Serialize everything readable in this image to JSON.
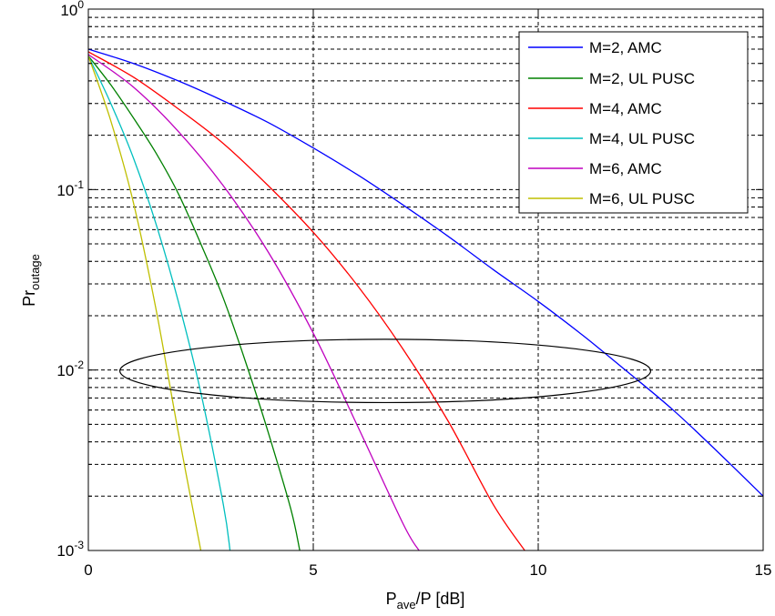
{
  "chart_data": {
    "type": "line",
    "title": "",
    "xlabel": {
      "main": "P",
      "sub": "ave",
      "rest": "/P [dB]"
    },
    "ylabel": {
      "main": "Pr",
      "sub": "outage"
    },
    "xlim": [
      0,
      15
    ],
    "ylim": [
      0.001,
      1
    ],
    "yscale": "log",
    "grid": true,
    "legend_position": "top-right",
    "x_ticks": [
      "0",
      "5",
      "10",
      "15"
    ],
    "y_ticks": [
      {
        "base": "10",
        "exp": "-3"
      },
      {
        "base": "10",
        "exp": "-2"
      },
      {
        "base": "10",
        "exp": "-1"
      },
      {
        "base": "10",
        "exp": "0"
      }
    ],
    "annotation": {
      "type": "ellipse",
      "cx": 6.6,
      "cy": 0.0095,
      "rx_data": 5.9,
      "y_top": 0.0148,
      "y_bottom": 0.0066
    },
    "series": [
      {
        "name": "M=2, AMC",
        "color": "#0000ff",
        "x": [
          0,
          1,
          2,
          3,
          4,
          5,
          6,
          7,
          8,
          9,
          10,
          11,
          12,
          13,
          14,
          15
        ],
        "y": [
          0.6,
          0.5,
          0.4,
          0.31,
          0.235,
          0.17,
          0.12,
          0.082,
          0.055,
          0.036,
          0.024,
          0.0155,
          0.0097,
          0.006,
          0.0035,
          0.002
        ]
      },
      {
        "name": "M=2, UL PUSC",
        "color": "#008000",
        "x": [
          0,
          0.5,
          1,
          1.5,
          2,
          2.5,
          3,
          3.5,
          4,
          4.5,
          4.7
        ],
        "y": [
          0.55,
          0.38,
          0.25,
          0.16,
          0.095,
          0.05,
          0.025,
          0.011,
          0.0045,
          0.0017,
          0.001
        ]
      },
      {
        "name": "M=4, AMC",
        "color": "#ff0000",
        "x": [
          0,
          1,
          2,
          3,
          4,
          5,
          6,
          7,
          8,
          9,
          9.7
        ],
        "y": [
          0.58,
          0.42,
          0.28,
          0.18,
          0.105,
          0.058,
          0.029,
          0.013,
          0.0052,
          0.0018,
          0.001
        ]
      },
      {
        "name": "M=4, UL PUSC",
        "color": "#00bfbf",
        "x": [
          0,
          0.5,
          1,
          1.5,
          2,
          2.5,
          3,
          3.15
        ],
        "y": [
          0.55,
          0.3,
          0.15,
          0.065,
          0.024,
          0.0075,
          0.0018,
          0.001
        ]
      },
      {
        "name": "M=6, AMC",
        "color": "#bf00bf",
        "x": [
          0,
          1,
          2,
          3,
          4,
          5,
          6,
          7,
          7.35
        ],
        "y": [
          0.56,
          0.37,
          0.21,
          0.105,
          0.045,
          0.016,
          0.0048,
          0.0014,
          0.001
        ]
      },
      {
        "name": "M=6, UL PUSC",
        "color": "#bfbf00",
        "x": [
          0,
          0.5,
          1,
          1.5,
          2,
          2.5
        ],
        "y": [
          0.55,
          0.24,
          0.085,
          0.022,
          0.0045,
          0.001
        ]
      }
    ]
  }
}
